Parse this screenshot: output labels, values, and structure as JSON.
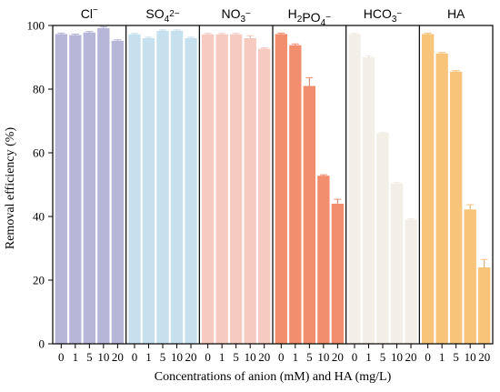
{
  "chart_data": {
    "type": "bar",
    "ylabel": "Removal efficiency (%)",
    "xlabel": "Concentrations of anion (mM) and HA (mg/L)",
    "ylim": [
      0,
      100
    ],
    "yticks": [
      0,
      20,
      40,
      60,
      80,
      100
    ],
    "grid": false,
    "legend": "none",
    "panels": [
      {
        "name": "Cl⁻",
        "color": "#b7b6d9",
        "categories": [
          "0",
          "1",
          "5",
          "10",
          "20"
        ],
        "values": [
          97.3,
          97.0,
          97.8,
          99.2,
          95.2
        ],
        "errors": [
          0.3,
          0.3,
          0.3,
          0.4,
          0.3
        ]
      },
      {
        "name": "SO₄²⁻",
        "color": "#c6e0ed",
        "categories": [
          "0",
          "1",
          "5",
          "10",
          "20"
        ],
        "values": [
          97.2,
          96.0,
          98.3,
          98.3,
          96.0
        ],
        "errors": [
          0.3,
          0.3,
          0.3,
          0.3,
          0.3
        ]
      },
      {
        "name": "NO₃⁻",
        "color": "#f6c9c1",
        "categories": [
          "0",
          "1",
          "5",
          "10",
          "20"
        ],
        "values": [
          97.2,
          97.2,
          97.2,
          96.0,
          92.7
        ],
        "errors": [
          0.3,
          0.3,
          0.3,
          0.8,
          0.3
        ]
      },
      {
        "name": "H₂PO₄⁻",
        "color": "#f28e6e",
        "categories": [
          "0",
          "1",
          "5",
          "10",
          "20"
        ],
        "values": [
          97.3,
          93.8,
          81.0,
          52.8,
          44.0
        ],
        "errors": [
          0.3,
          0.4,
          2.6,
          0.3,
          1.4
        ]
      },
      {
        "name": "HCO₃⁻",
        "color": "#f3eee6",
        "categories": [
          "0",
          "1",
          "5",
          "10",
          "20"
        ],
        "values": [
          97.3,
          90.0,
          66.2,
          50.4,
          39.0
        ],
        "errors": [
          0.3,
          0.4,
          0.3,
          0.3,
          0.3
        ]
      },
      {
        "name": "HA",
        "color": "#f8c47a",
        "categories": [
          "0",
          "1",
          "5",
          "10",
          "20"
        ],
        "values": [
          97.3,
          91.2,
          85.5,
          42.2,
          24.0
        ],
        "errors": [
          0.3,
          0.3,
          0.3,
          1.5,
          2.5
        ]
      }
    ]
  }
}
